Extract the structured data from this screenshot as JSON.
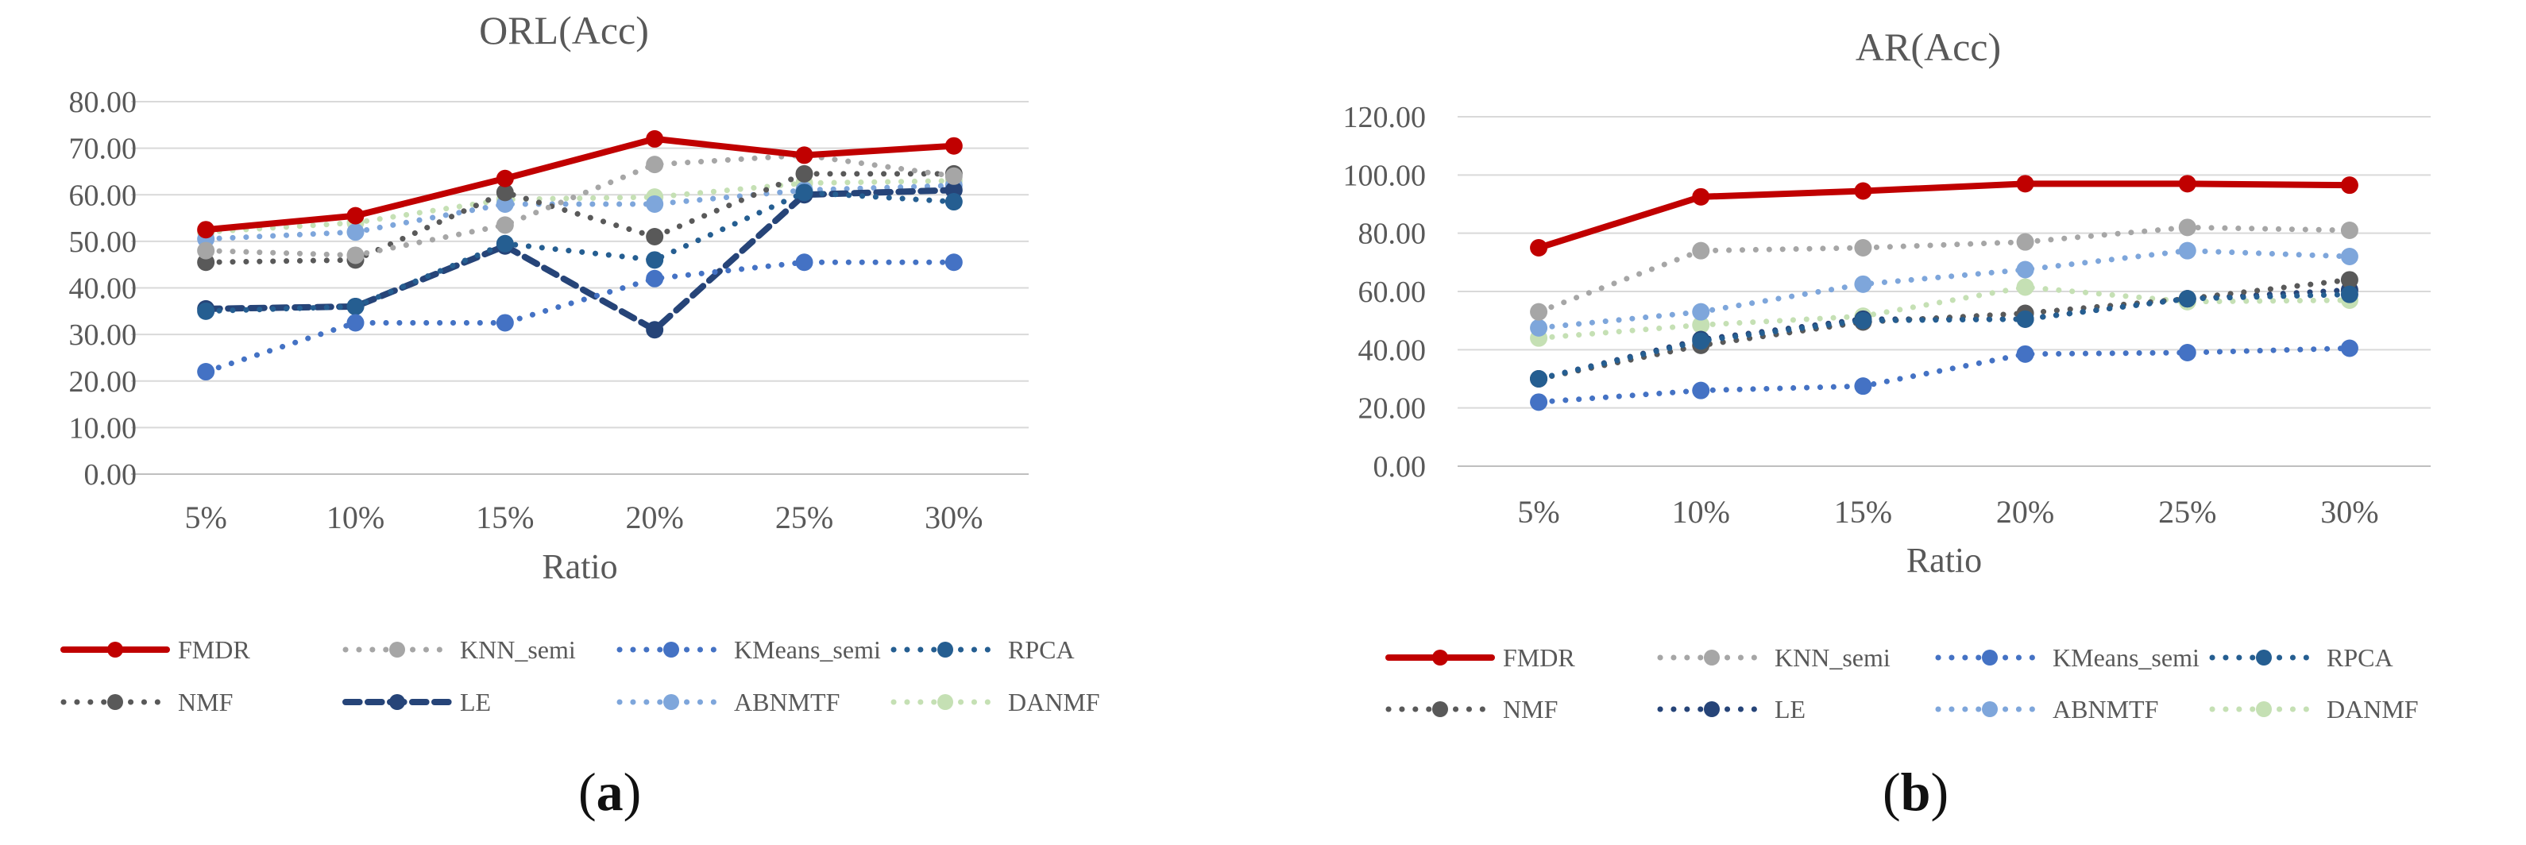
{
  "chart_data": [
    {
      "type": "line",
      "title": "ORL(Acc)",
      "xlabel": "Ratio",
      "ylabel": "",
      "ylim": [
        0,
        80
      ],
      "yticks": [
        "0.00",
        "10.00",
        "20.00",
        "30.00",
        "40.00",
        "50.00",
        "60.00",
        "70.00",
        "80.00"
      ],
      "categories": [
        "5%",
        "10%",
        "15%",
        "20%",
        "25%",
        "30%"
      ],
      "series": [
        {
          "name": "FMDR",
          "values": [
            52.5,
            55.5,
            63.5,
            72.0,
            68.5,
            70.5
          ],
          "color": "#C00000",
          "style": "solid"
        },
        {
          "name": "KNN_semi",
          "values": [
            48.0,
            47.0,
            53.5,
            66.5,
            68.5,
            64.0
          ],
          "color": "#A6A6A6",
          "style": "dot"
        },
        {
          "name": "KMeans_semi",
          "values": [
            22.0,
            32.5,
            32.5,
            42.0,
            45.5,
            45.5
          ],
          "color": "#4472C4",
          "style": "dot"
        },
        {
          "name": "RPCA",
          "values": [
            35.0,
            36.0,
            49.5,
            46.0,
            60.5,
            58.5
          ],
          "color": "#255E91",
          "style": "dot"
        },
        {
          "name": "NMF",
          "values": [
            45.5,
            46.0,
            60.5,
            51.0,
            64.5,
            64.5
          ],
          "color": "#595959",
          "style": "dot"
        },
        {
          "name": "LE",
          "values": [
            35.5,
            36.0,
            49.0,
            31.0,
            60.0,
            61.0
          ],
          "color": "#264478",
          "style": "dash"
        },
        {
          "name": "ABNMTF",
          "values": [
            50.5,
            52.0,
            58.0,
            58.0,
            61.0,
            62.0
          ],
          "color": "#7EA6DB",
          "style": "dot"
        },
        {
          "name": "DANMF",
          "values": [
            52.0,
            54.0,
            59.0,
            59.5,
            62.5,
            63.0
          ],
          "color": "#C5E0B4",
          "style": "dot"
        }
      ]
    },
    {
      "type": "line",
      "title": "AR(Acc)",
      "xlabel": "Ratio",
      "ylabel": "",
      "ylim": [
        0,
        120
      ],
      "yticks": [
        "0.00",
        "20.00",
        "40.00",
        "60.00",
        "80.00",
        "100.00",
        "120.00"
      ],
      "categories": [
        "5%",
        "10%",
        "15%",
        "20%",
        "25%",
        "30%"
      ],
      "series": [
        {
          "name": "FMDR",
          "values": [
            75.0,
            92.5,
            94.5,
            97.0,
            97.0,
            96.5
          ],
          "color": "#C00000",
          "style": "solid"
        },
        {
          "name": "KNN_semi",
          "values": [
            53.0,
            74.0,
            75.0,
            77.0,
            82.0,
            81.0
          ],
          "color": "#A6A6A6",
          "style": "dot"
        },
        {
          "name": "KMeans_semi",
          "values": [
            22.0,
            26.0,
            27.5,
            38.5,
            39.0,
            40.5
          ],
          "color": "#4472C4",
          "style": "dot"
        },
        {
          "name": "RPCA",
          "values": [
            30.0,
            43.0,
            50.0,
            50.5,
            57.5,
            59.0
          ],
          "color": "#255E91",
          "style": "dot"
        },
        {
          "name": "NMF",
          "values": [
            30.0,
            41.5,
            49.5,
            52.5,
            57.5,
            64.0
          ],
          "color": "#595959",
          "style": "dot"
        },
        {
          "name": "LE",
          "values": [
            30.0,
            43.5,
            50.5,
            50.5,
            57.5,
            60.5
          ],
          "color": "#264478",
          "style": "dot"
        },
        {
          "name": "ABNMTF",
          "values": [
            47.5,
            53.0,
            62.5,
            67.5,
            74.0,
            72.0
          ],
          "color": "#7EA6DB",
          "style": "dot"
        },
        {
          "name": "DANMF",
          "values": [
            44.0,
            48.5,
            51.5,
            61.5,
            56.5,
            57.0
          ],
          "color": "#C5E0B4",
          "style": "dot"
        }
      ]
    }
  ],
  "captions": [
    {
      "open": "(",
      "letter": "a",
      "close": ")"
    },
    {
      "open": "(",
      "letter": "b",
      "close": ")"
    }
  ]
}
